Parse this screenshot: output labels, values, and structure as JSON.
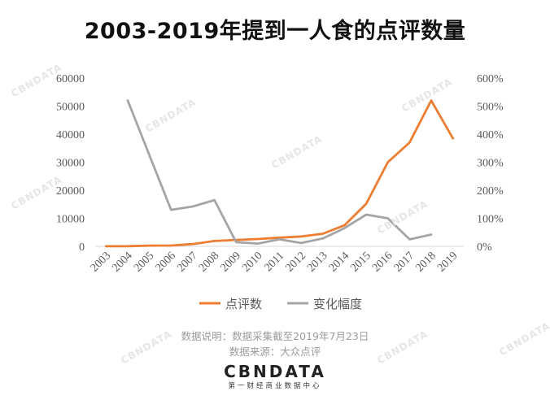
{
  "title": "2003-2019年提到一人食的点评数量",
  "notes": {
    "line1": "数据说明：数据采集截至2019年7月23日",
    "line2": "数据来源：大众点评"
  },
  "brand": {
    "logo": "CBNDATA",
    "sub": "第一财经商业数据中心"
  },
  "colors": {
    "series1": "#ED7D31",
    "series2": "#A5A5A5",
    "axis": "#D9D9D9",
    "text": "#595959"
  },
  "chart_data": {
    "type": "line",
    "title": "2003-2019年提到一人食的点评数量",
    "x": [
      "2003",
      "2004",
      "2005",
      "2006",
      "2007",
      "2008",
      "2009",
      "2010",
      "2011",
      "2012",
      "2013",
      "2014",
      "2015",
      "2016",
      "2017",
      "2018",
      "2019"
    ],
    "y_left": {
      "min": 0,
      "max": 60000,
      "ticks": [
        "0",
        "10000",
        "20000",
        "30000",
        "40000",
        "50000",
        "60000"
      ]
    },
    "y_right": {
      "min": 0,
      "max": 6,
      "ticks": [
        "0%",
        "100%",
        "200%",
        "300%",
        "400%",
        "500%",
        "600%"
      ]
    },
    "series": [
      {
        "name": "点评数",
        "axis": "left",
        "values": [
          30,
          50,
          250,
          300,
          800,
          1900,
          2300,
          2600,
          3100,
          3500,
          4500,
          7500,
          15200,
          30000,
          37000,
          52000,
          38500
        ]
      },
      {
        "name": "变化幅度",
        "axis": "right",
        "values": [
          null,
          5.2,
          3.25,
          1.3,
          1.42,
          1.65,
          0.15,
          0.1,
          0.25,
          0.12,
          0.28,
          0.65,
          1.13,
          1.0,
          0.25,
          0.42,
          null
        ]
      }
    ],
    "legend_position": "bottom",
    "grid": false
  }
}
